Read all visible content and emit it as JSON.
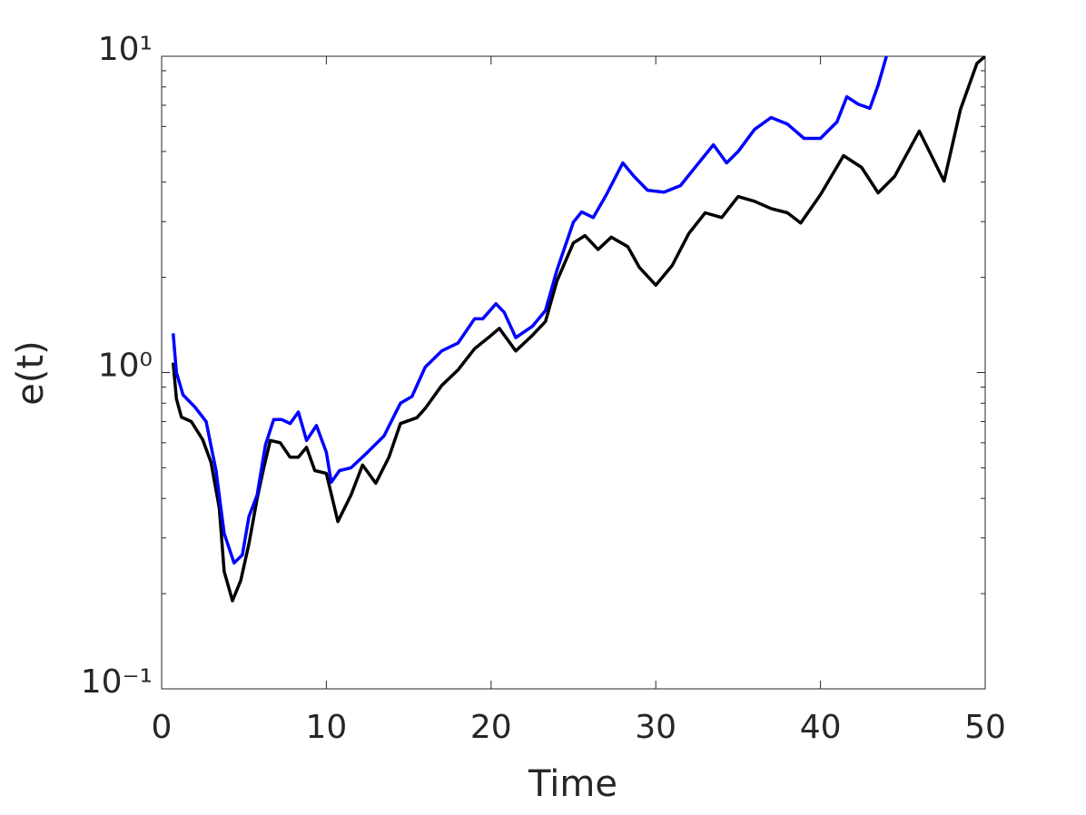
{
  "chart_data": {
    "type": "line",
    "xlabel": "Time",
    "ylabel": "e(t)",
    "xlim": [
      0,
      50
    ],
    "xticks": [
      0,
      10,
      20,
      30,
      40,
      50
    ],
    "ylim": [
      0.1,
      10
    ],
    "yscale": "log",
    "yticks": [
      {
        "value": 0.1,
        "label": "10⁻¹"
      },
      {
        "value": 1,
        "label": "10⁰"
      },
      {
        "value": 10,
        "label": "10¹"
      }
    ],
    "grid": false,
    "series": [
      {
        "color": "#000000",
        "x": [
          0.7,
          0.9,
          1.2,
          1.8,
          2.5,
          3.0,
          3.5,
          3.8,
          4.3,
          4.8,
          5.3,
          5.8,
          6.2,
          6.6,
          7.2,
          7.8,
          8.3,
          8.8,
          9.3,
          10.0,
          10.7,
          11.5,
          12.2,
          13.0,
          13.8,
          14.5,
          15.5,
          16.0,
          17.0,
          18.0,
          19.0,
          20.0,
          20.5,
          21.5,
          22.5,
          23.3,
          24.0,
          25.0,
          25.7,
          26.5,
          27.3,
          28.3,
          29.0,
          30.0,
          31.0,
          32.0,
          33.0,
          34.0,
          35.0,
          36.0,
          37.0,
          38.0,
          38.8,
          40.0,
          41.4,
          42.5,
          43.5,
          44.5,
          46.0,
          47.5,
          48.5,
          49.5,
          50.0
        ],
        "values": [
          1.075,
          0.826,
          0.723,
          0.7,
          0.613,
          0.52,
          0.373,
          0.235,
          0.19,
          0.22,
          0.287,
          0.4,
          0.5,
          0.61,
          0.6,
          0.54,
          0.54,
          0.58,
          0.49,
          0.48,
          0.338,
          0.41,
          0.51,
          0.447,
          0.54,
          0.69,
          0.72,
          0.77,
          0.91,
          1.02,
          1.19,
          1.31,
          1.38,
          1.17,
          1.31,
          1.45,
          1.95,
          2.57,
          2.71,
          2.45,
          2.68,
          2.5,
          2.15,
          1.89,
          2.18,
          2.75,
          3.2,
          3.09,
          3.6,
          3.48,
          3.3,
          3.2,
          2.97,
          3.65,
          4.85,
          4.45,
          3.7,
          4.17,
          5.8,
          4.03,
          6.8,
          9.5,
          10
        ]
      },
      {
        "color": "#0000ff",
        "x": [
          0.7,
          0.9,
          1.3,
          2.0,
          2.7,
          3.3,
          3.8,
          4.4,
          4.9,
          5.3,
          5.8,
          6.3,
          6.8,
          7.3,
          7.8,
          8.3,
          8.8,
          9.4,
          10.0,
          10.3,
          10.8,
          11.5,
          12.5,
          13.5,
          14.5,
          15.2,
          16.0,
          17.0,
          18.0,
          19.0,
          19.5,
          20.3,
          20.8,
          21.5,
          22.5,
          23.3,
          24.0,
          25.0,
          25.5,
          26.2,
          27.0,
          28.0,
          28.7,
          29.5,
          30.5,
          31.5,
          32.5,
          33.5,
          34.3,
          35.0,
          36.0,
          37.0,
          38.0,
          39.0,
          40.0,
          41.0,
          41.6,
          42.3,
          43.0,
          43.5,
          44.0
        ],
        "values": [
          1.33,
          1.0,
          0.85,
          0.78,
          0.7,
          0.49,
          0.31,
          0.25,
          0.265,
          0.35,
          0.41,
          0.59,
          0.71,
          0.71,
          0.69,
          0.75,
          0.61,
          0.68,
          0.56,
          0.45,
          0.49,
          0.5,
          0.56,
          0.63,
          0.8,
          0.84,
          1.04,
          1.17,
          1.24,
          1.48,
          1.48,
          1.65,
          1.55,
          1.29,
          1.4,
          1.57,
          2.11,
          2.99,
          3.22,
          3.09,
          3.65,
          4.6,
          4.16,
          3.77,
          3.72,
          3.9,
          4.53,
          5.25,
          4.6,
          5.0,
          5.87,
          6.4,
          6.1,
          5.5,
          5.5,
          6.2,
          7.45,
          7.05,
          6.85,
          8.1,
          10.0
        ]
      }
    ]
  }
}
